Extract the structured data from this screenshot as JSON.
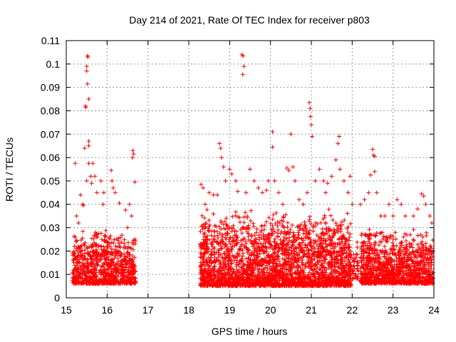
{
  "chart_data": {
    "type": "scatter",
    "title": "Day 214 of 2021, Rate Of TEC Index for receiver p803",
    "xlabel": "GPS time / hours",
    "ylabel": "ROTI / TECUs",
    "xlim": [
      15,
      24
    ],
    "ylim": [
      0,
      0.11
    ],
    "xticks": [
      15,
      16,
      17,
      18,
      19,
      20,
      21,
      22,
      23,
      24
    ],
    "xtick_labels": [
      "15",
      "16",
      "17",
      "18",
      "19",
      "20",
      "21",
      "22",
      "23",
      "24"
    ],
    "yticks": [
      0,
      0.01,
      0.02,
      0.03,
      0.04,
      0.05,
      0.06,
      0.07,
      0.08,
      0.09,
      0.1,
      0.11
    ],
    "ytick_labels": [
      "0",
      "0.01",
      "0.02",
      "0.03",
      "0.04",
      "0.05",
      "0.06",
      "0.07",
      "0.08",
      "0.09",
      "0.1",
      "0.11"
    ],
    "grid": true,
    "marker": "+",
    "color": "#ff0000",
    "series": [
      {
        "name": "p803",
        "points": [
          [
            15.22,
            0.0575
          ],
          [
            15.25,
            0.035
          ],
          [
            15.3,
            0.032
          ],
          [
            15.35,
            0.044
          ],
          [
            15.4,
            0.04
          ],
          [
            15.42,
            0.0395
          ],
          [
            15.45,
            0.064
          ],
          [
            15.47,
            0.082
          ],
          [
            15.48,
            0.0815
          ],
          [
            15.5,
            0.097
          ],
          [
            15.5,
            0.099
          ],
          [
            15.52,
            0.1035
          ],
          [
            15.53,
            0.103
          ],
          [
            15.52,
            0.0915
          ],
          [
            15.55,
            0.085
          ],
          [
            15.55,
            0.067
          ],
          [
            15.55,
            0.065
          ],
          [
            15.55,
            0.0575
          ],
          [
            15.5,
            0.05
          ],
          [
            15.6,
            0.052
          ],
          [
            15.62,
            0.049
          ],
          [
            15.65,
            0.0575
          ],
          [
            15.7,
            0.052
          ],
          [
            15.75,
            0.045
          ],
          [
            15.85,
            0.05
          ],
          [
            15.9,
            0.04
          ],
          [
            15.92,
            0.045
          ],
          [
            16.1,
            0.0545
          ],
          [
            16.12,
            0.05
          ],
          [
            16.15,
            0.047
          ],
          [
            16.2,
            0.045
          ],
          [
            16.3,
            0.0405
          ],
          [
            16.45,
            0.0375
          ],
          [
            16.55,
            0.04
          ],
          [
            16.62,
            0.06
          ],
          [
            16.63,
            0.063
          ],
          [
            16.65,
            0.0615
          ],
          [
            16.68,
            0.0495
          ],
          [
            16.6,
            0.035
          ],
          [
            16.5,
            0.03
          ],
          [
            18.3,
            0.0485
          ],
          [
            18.35,
            0.047
          ],
          [
            18.4,
            0.04
          ],
          [
            18.5,
            0.045
          ],
          [
            18.6,
            0.044
          ],
          [
            18.7,
            0.044
          ],
          [
            18.75,
            0.066
          ],
          [
            18.78,
            0.064
          ],
          [
            18.8,
            0.06
          ],
          [
            18.85,
            0.056
          ],
          [
            18.9,
            0.05
          ],
          [
            19.0,
            0.055
          ],
          [
            19.05,
            0.053
          ],
          [
            19.15,
            0.05
          ],
          [
            19.2,
            0.0455
          ],
          [
            19.3,
            0.104
          ],
          [
            19.33,
            0.1035
          ],
          [
            19.35,
            0.099
          ],
          [
            19.32,
            0.0955
          ],
          [
            19.4,
            0.045
          ],
          [
            19.5,
            0.055
          ],
          [
            19.6,
            0.05
          ],
          [
            19.7,
            0.047
          ],
          [
            19.8,
            0.045
          ],
          [
            19.9,
            0.046
          ],
          [
            19.95,
            0.05
          ],
          [
            20.05,
            0.071
          ],
          [
            20.05,
            0.0645
          ],
          [
            20.1,
            0.05
          ],
          [
            20.2,
            0.045
          ],
          [
            20.3,
            0.04
          ],
          [
            20.4,
            0.0555
          ],
          [
            20.45,
            0.0545
          ],
          [
            20.5,
            0.07
          ],
          [
            20.55,
            0.056
          ],
          [
            20.6,
            0.05
          ],
          [
            20.7,
            0.042
          ],
          [
            20.8,
            0.04
          ],
          [
            20.9,
            0.045
          ],
          [
            20.95,
            0.0835
          ],
          [
            20.97,
            0.081
          ],
          [
            20.98,
            0.0775
          ],
          [
            21.0,
            0.074
          ],
          [
            21.02,
            0.069
          ],
          [
            21.1,
            0.05
          ],
          [
            21.2,
            0.055
          ],
          [
            21.3,
            0.05
          ],
          [
            21.35,
            0.045
          ],
          [
            21.4,
            0.049
          ],
          [
            21.5,
            0.052
          ],
          [
            21.6,
            0.059
          ],
          [
            21.65,
            0.066
          ],
          [
            21.68,
            0.069
          ],
          [
            21.7,
            0.055
          ],
          [
            21.8,
            0.05
          ],
          [
            21.9,
            0.045
          ],
          [
            21.95,
            0.052
          ],
          [
            22.0,
            0.04
          ],
          [
            22.2,
            0.04
          ],
          [
            22.3,
            0.042
          ],
          [
            22.4,
            0.045
          ],
          [
            22.45,
            0.0525
          ],
          [
            22.5,
            0.0635
          ],
          [
            22.52,
            0.061
          ],
          [
            22.55,
            0.0605
          ],
          [
            22.55,
            0.054
          ],
          [
            22.6,
            0.045
          ],
          [
            22.7,
            0.035
          ],
          [
            22.8,
            0.035
          ],
          [
            22.9,
            0.04
          ],
          [
            23.0,
            0.035
          ],
          [
            23.1,
            0.042
          ],
          [
            23.2,
            0.04
          ],
          [
            23.3,
            0.035
          ],
          [
            23.5,
            0.035
          ],
          [
            23.6,
            0.038
          ],
          [
            23.7,
            0.0445
          ],
          [
            23.75,
            0.0435
          ],
          [
            23.8,
            0.04
          ],
          [
            23.9,
            0.035
          ],
          [
            23.95,
            0.032
          ]
        ]
      }
    ],
    "dense_band": [
      {
        "x_range": [
          15.15,
          16.7
        ],
        "y_min": 0.006,
        "y_max": 0.03,
        "n": 900
      },
      {
        "x_range": [
          18.28,
          21.98
        ],
        "y_min": 0.005,
        "y_max": 0.038,
        "n": 2600
      },
      {
        "x_range": [
          22.0,
          22.15
        ],
        "y_min": 0.008,
        "y_max": 0.025,
        "n": 40
      },
      {
        "x_range": [
          22.2,
          23.98
        ],
        "y_min": 0.006,
        "y_max": 0.03,
        "n": 1100
      }
    ]
  }
}
